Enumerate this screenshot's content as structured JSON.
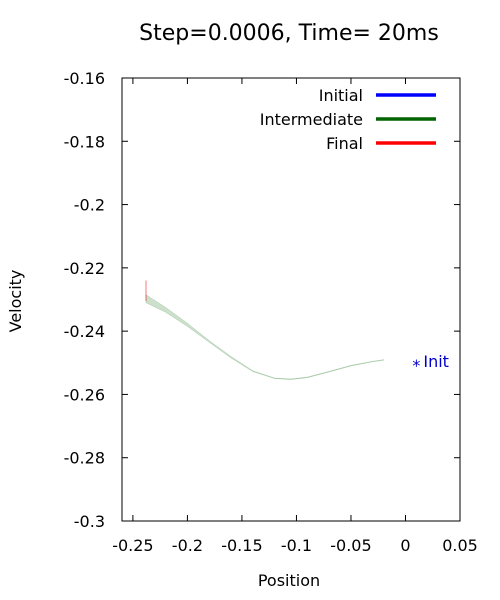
{
  "chart_data": {
    "type": "line",
    "title": "Step=0.0006, Time= 20ms",
    "xlabel": "Position",
    "ylabel": "Velocity",
    "xlim": [
      -0.26,
      0.05
    ],
    "ylim": [
      -0.3,
      -0.16
    ],
    "xticks": [
      -0.25,
      -0.2,
      -0.15,
      -0.1,
      -0.05,
      0,
      0.05
    ],
    "yticks": [
      -0.3,
      -0.28,
      -0.26,
      -0.24,
      -0.22,
      -0.2,
      -0.18,
      -0.16
    ],
    "xtick_labels": [
      "-0.25",
      "-0.2",
      "-0.15",
      "-0.1",
      "-0.05",
      "0",
      "0.05"
    ],
    "ytick_labels": [
      "-0.3",
      "-0.28",
      "-0.26",
      "-0.24",
      "-0.22",
      "-0.2",
      "-0.18",
      "-0.16"
    ],
    "legend_position": "top-right",
    "series": [
      {
        "name": "Initial",
        "color": "#0000ff",
        "x": [],
        "y": []
      },
      {
        "name": "Intermediate",
        "color": "#006400",
        "band_upper": {
          "x": [
            -0.238,
            -0.22,
            -0.2,
            -0.18,
            -0.16,
            -0.14,
            -0.12,
            -0.105,
            -0.09,
            -0.07,
            -0.05,
            -0.03,
            -0.02
          ],
          "y": [
            -0.2285,
            -0.2325,
            -0.2375,
            -0.243,
            -0.248,
            -0.2525,
            -0.2548,
            -0.2551,
            -0.2545,
            -0.2527,
            -0.2508,
            -0.2495,
            -0.249
          ]
        },
        "band_lower": {
          "x": [
            -0.238,
            -0.22,
            -0.2,
            -0.18,
            -0.16,
            -0.14,
            -0.12,
            -0.105,
            -0.09,
            -0.07,
            -0.05,
            -0.03,
            -0.02
          ],
          "y": [
            -0.231,
            -0.234,
            -0.2385,
            -0.2435,
            -0.2485,
            -0.2528,
            -0.255,
            -0.2553,
            -0.2547,
            -0.2529,
            -0.251,
            -0.2497,
            -0.2492
          ]
        }
      },
      {
        "name": "Final",
        "color": "#ff0000",
        "x": [
          -0.238,
          -0.238
        ],
        "y": [
          -0.2305,
          -0.224
        ]
      }
    ],
    "annotations": [
      {
        "text": "Init",
        "x": 0.01,
        "y": -0.25,
        "marker": "*",
        "color": "#0000cd"
      }
    ]
  }
}
